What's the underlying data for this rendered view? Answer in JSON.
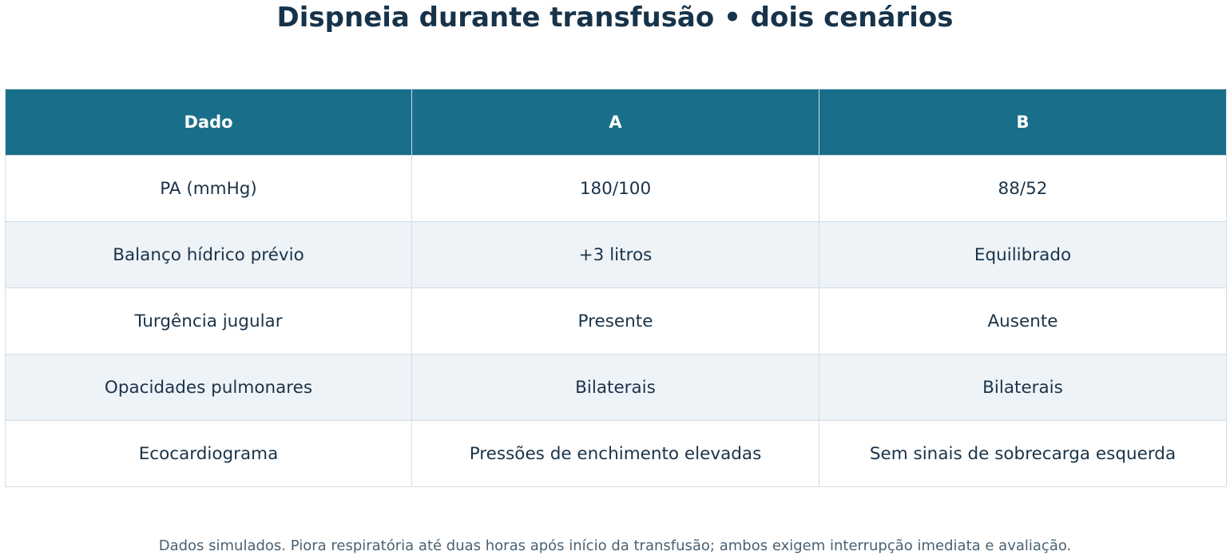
{
  "title": "Dispneia durante transfusão • dois cenários",
  "footnote": "Dados simulados. Piora respiratória até duas horas após início da transfusão; ambos exigem interrupção imediata e avaliação.",
  "colors": {
    "header_bg": "#196f89",
    "header_text": "#ffffff",
    "body_text": "#1a3349",
    "alt_row_bg": "#eef3f7",
    "border": "#d2dde6"
  },
  "chart_data": {
    "type": "table",
    "title": "Dispneia durante transfusão • dois cenários",
    "columns": [
      "Dado",
      "A",
      "B"
    ],
    "rows": [
      [
        "PA (mmHg)",
        "180/100",
        "88/52"
      ],
      [
        "Balanço hídrico prévio",
        "+3 litros",
        "Equilibrado"
      ],
      [
        "Turgência jugular",
        "Presente",
        "Ausente"
      ],
      [
        "Opacidades pulmonares",
        "Bilaterais",
        "Bilaterais"
      ],
      [
        "Ecocardiograma",
        "Pressões de enchimento elevadas",
        "Sem sinais de sobrecarga esquerda"
      ]
    ]
  }
}
